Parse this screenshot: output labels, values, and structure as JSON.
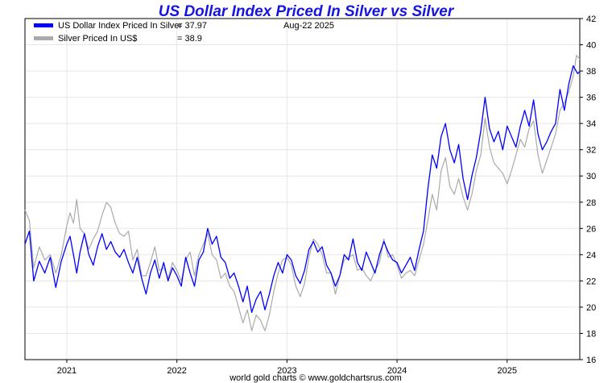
{
  "chart_data": {
    "type": "line",
    "title": "US Dollar Index Priced In Silver vs Silver",
    "date_label": "Aug-22  2025",
    "credit": "world gold charts © www.goldchartsrus.com",
    "grid": true,
    "legend_position": "top-left",
    "x_axis": {
      "ticks": [
        {
          "label": "2021",
          "x": 2021.0
        },
        {
          "label": "2022",
          "x": 2022.0
        },
        {
          "label": "2023",
          "x": 2023.0
        },
        {
          "label": "2024",
          "x": 2024.0
        },
        {
          "label": "2025",
          "x": 2025.0
        }
      ],
      "range": [
        2020.62,
        2025.66
      ]
    },
    "y_axis": {
      "ticks": [
        "16",
        "18",
        "20",
        "22",
        "24",
        "26",
        "28",
        "30",
        "32",
        "34",
        "36",
        "38",
        "40",
        "42"
      ],
      "range": [
        16,
        42
      ]
    },
    "series": [
      {
        "name": "US Dollar Index Priced In Silver",
        "value_label": "= 37.97",
        "color": "#0000ff",
        "points": [
          [
            2020.62,
            24.8
          ],
          [
            2020.66,
            25.8
          ],
          [
            2020.7,
            22.0
          ],
          [
            2020.75,
            23.5
          ],
          [
            2020.8,
            22.6
          ],
          [
            2020.85,
            23.8
          ],
          [
            2020.9,
            21.5
          ],
          [
            2020.95,
            23.5
          ],
          [
            2021.0,
            24.8
          ],
          [
            2021.03,
            25.4
          ],
          [
            2021.06,
            24.0
          ],
          [
            2021.09,
            22.6
          ],
          [
            2021.12,
            24.2
          ],
          [
            2021.16,
            25.6
          ],
          [
            2021.2,
            24.0
          ],
          [
            2021.24,
            23.2
          ],
          [
            2021.28,
            24.6
          ],
          [
            2021.32,
            25.6
          ],
          [
            2021.36,
            24.4
          ],
          [
            2021.4,
            25.0
          ],
          [
            2021.44,
            24.2
          ],
          [
            2021.48,
            23.8
          ],
          [
            2021.52,
            24.4
          ],
          [
            2021.56,
            23.4
          ],
          [
            2021.6,
            22.6
          ],
          [
            2021.64,
            23.8
          ],
          [
            2021.68,
            22.2
          ],
          [
            2021.72,
            21.0
          ],
          [
            2021.76,
            22.6
          ],
          [
            2021.8,
            23.6
          ],
          [
            2021.84,
            22.2
          ],
          [
            2021.88,
            23.4
          ],
          [
            2021.92,
            22.0
          ],
          [
            2021.96,
            23.0
          ],
          [
            2022.0,
            22.4
          ],
          [
            2022.04,
            21.6
          ],
          [
            2022.08,
            23.8
          ],
          [
            2022.12,
            22.6
          ],
          [
            2022.16,
            21.6
          ],
          [
            2022.2,
            23.6
          ],
          [
            2022.24,
            24.2
          ],
          [
            2022.28,
            26.0
          ],
          [
            2022.32,
            24.8
          ],
          [
            2022.36,
            25.4
          ],
          [
            2022.4,
            23.8
          ],
          [
            2022.44,
            23.4
          ],
          [
            2022.48,
            22.2
          ],
          [
            2022.52,
            22.6
          ],
          [
            2022.56,
            21.6
          ],
          [
            2022.6,
            20.4
          ],
          [
            2022.64,
            21.6
          ],
          [
            2022.68,
            19.6
          ],
          [
            2022.72,
            20.6
          ],
          [
            2022.76,
            21.2
          ],
          [
            2022.8,
            19.8
          ],
          [
            2022.84,
            21.0
          ],
          [
            2022.88,
            22.4
          ],
          [
            2022.92,
            23.4
          ],
          [
            2022.96,
            22.6
          ],
          [
            2023.0,
            24.0
          ],
          [
            2023.04,
            23.6
          ],
          [
            2023.08,
            22.4
          ],
          [
            2023.12,
            21.8
          ],
          [
            2023.16,
            22.8
          ],
          [
            2023.2,
            24.4
          ],
          [
            2023.24,
            25.0
          ],
          [
            2023.28,
            24.2
          ],
          [
            2023.32,
            24.6
          ],
          [
            2023.36,
            23.2
          ],
          [
            2023.4,
            22.6
          ],
          [
            2023.44,
            21.6
          ],
          [
            2023.48,
            22.4
          ],
          [
            2023.52,
            24.0
          ],
          [
            2023.56,
            23.6
          ],
          [
            2023.6,
            25.2
          ],
          [
            2023.64,
            23.4
          ],
          [
            2023.68,
            22.8
          ],
          [
            2023.72,
            24.2
          ],
          [
            2023.76,
            23.4
          ],
          [
            2023.8,
            22.6
          ],
          [
            2023.84,
            24.0
          ],
          [
            2023.88,
            25.0
          ],
          [
            2023.92,
            24.2
          ],
          [
            2023.96,
            23.6
          ],
          [
            2024.0,
            23.4
          ],
          [
            2024.04,
            22.6
          ],
          [
            2024.08,
            23.2
          ],
          [
            2024.12,
            23.8
          ],
          [
            2024.16,
            22.8
          ],
          [
            2024.2,
            24.4
          ],
          [
            2024.24,
            25.8
          ],
          [
            2024.28,
            29.0
          ],
          [
            2024.32,
            31.6
          ],
          [
            2024.36,
            30.6
          ],
          [
            2024.4,
            33.0
          ],
          [
            2024.44,
            34.0
          ],
          [
            2024.48,
            32.0
          ],
          [
            2024.52,
            31.0
          ],
          [
            2024.56,
            32.4
          ],
          [
            2024.6,
            29.8
          ],
          [
            2024.64,
            28.2
          ],
          [
            2024.68,
            30.0
          ],
          [
            2024.72,
            31.4
          ],
          [
            2024.76,
            33.4
          ],
          [
            2024.8,
            36.0
          ],
          [
            2024.84,
            33.6
          ],
          [
            2024.88,
            32.6
          ],
          [
            2024.92,
            33.4
          ],
          [
            2024.96,
            32.0
          ],
          [
            2025.0,
            33.8
          ],
          [
            2025.04,
            33.0
          ],
          [
            2025.08,
            32.2
          ],
          [
            2025.12,
            33.8
          ],
          [
            2025.16,
            35.0
          ],
          [
            2025.2,
            33.8
          ],
          [
            2025.24,
            35.8
          ],
          [
            2025.28,
            33.2
          ],
          [
            2025.32,
            32.0
          ],
          [
            2025.36,
            32.6
          ],
          [
            2025.4,
            33.4
          ],
          [
            2025.44,
            34.0
          ],
          [
            2025.48,
            36.6
          ],
          [
            2025.52,
            35.0
          ],
          [
            2025.56,
            37.0
          ],
          [
            2025.6,
            38.4
          ],
          [
            2025.64,
            37.8
          ],
          [
            2025.66,
            37.97
          ]
        ]
      },
      {
        "name": "Silver Priced In US$",
        "value_label": "= 38.9",
        "color": "#aaaaaa",
        "points": [
          [
            2020.62,
            27.4
          ],
          [
            2020.66,
            26.6
          ],
          [
            2020.7,
            23.0
          ],
          [
            2020.75,
            24.6
          ],
          [
            2020.8,
            23.6
          ],
          [
            2020.85,
            24.0
          ],
          [
            2020.9,
            22.6
          ],
          [
            2020.95,
            24.0
          ],
          [
            2021.0,
            26.2
          ],
          [
            2021.03,
            27.2
          ],
          [
            2021.06,
            26.4
          ],
          [
            2021.09,
            28.2
          ],
          [
            2021.12,
            26.0
          ],
          [
            2021.16,
            25.6
          ],
          [
            2021.2,
            24.4
          ],
          [
            2021.24,
            25.2
          ],
          [
            2021.28,
            25.8
          ],
          [
            2021.32,
            27.0
          ],
          [
            2021.36,
            28.0
          ],
          [
            2021.4,
            27.6
          ],
          [
            2021.44,
            26.4
          ],
          [
            2021.48,
            25.6
          ],
          [
            2021.52,
            25.4
          ],
          [
            2021.56,
            25.8
          ],
          [
            2021.6,
            23.6
          ],
          [
            2021.64,
            24.4
          ],
          [
            2021.68,
            22.4
          ],
          [
            2021.72,
            22.4
          ],
          [
            2021.76,
            23.4
          ],
          [
            2021.8,
            24.6
          ],
          [
            2021.84,
            22.8
          ],
          [
            2021.88,
            23.0
          ],
          [
            2021.92,
            22.2
          ],
          [
            2021.96,
            23.4
          ],
          [
            2022.0,
            22.8
          ],
          [
            2022.04,
            22.0
          ],
          [
            2022.08,
            23.6
          ],
          [
            2022.12,
            24.2
          ],
          [
            2022.16,
            22.4
          ],
          [
            2022.2,
            24.0
          ],
          [
            2022.24,
            24.8
          ],
          [
            2022.28,
            25.6
          ],
          [
            2022.32,
            24.0
          ],
          [
            2022.36,
            23.6
          ],
          [
            2022.4,
            22.2
          ],
          [
            2022.44,
            22.6
          ],
          [
            2022.48,
            21.6
          ],
          [
            2022.52,
            21.2
          ],
          [
            2022.56,
            20.0
          ],
          [
            2022.6,
            18.8
          ],
          [
            2022.64,
            19.8
          ],
          [
            2022.68,
            18.2
          ],
          [
            2022.72,
            19.4
          ],
          [
            2022.76,
            19.0
          ],
          [
            2022.8,
            18.2
          ],
          [
            2022.84,
            19.4
          ],
          [
            2022.88,
            21.2
          ],
          [
            2022.92,
            22.6
          ],
          [
            2022.96,
            23.6
          ],
          [
            2023.0,
            23.8
          ],
          [
            2023.04,
            23.2
          ],
          [
            2023.08,
            21.6
          ],
          [
            2023.12,
            20.8
          ],
          [
            2023.16,
            21.8
          ],
          [
            2023.2,
            23.8
          ],
          [
            2023.24,
            25.2
          ],
          [
            2023.28,
            24.8
          ],
          [
            2023.32,
            24.0
          ],
          [
            2023.36,
            22.6
          ],
          [
            2023.4,
            22.6
          ],
          [
            2023.44,
            21.0
          ],
          [
            2023.48,
            22.4
          ],
          [
            2023.52,
            23.6
          ],
          [
            2023.56,
            23.8
          ],
          [
            2023.6,
            24.0
          ],
          [
            2023.64,
            22.8
          ],
          [
            2023.68,
            23.0
          ],
          [
            2023.72,
            22.4
          ],
          [
            2023.76,
            22.0
          ],
          [
            2023.8,
            22.8
          ],
          [
            2023.84,
            23.4
          ],
          [
            2023.88,
            25.2
          ],
          [
            2023.92,
            23.8
          ],
          [
            2023.96,
            24.0
          ],
          [
            2024.0,
            23.2
          ],
          [
            2024.04,
            22.2
          ],
          [
            2024.08,
            22.6
          ],
          [
            2024.12,
            22.8
          ],
          [
            2024.16,
            22.4
          ],
          [
            2024.2,
            23.6
          ],
          [
            2024.24,
            24.8
          ],
          [
            2024.28,
            26.6
          ],
          [
            2024.32,
            28.6
          ],
          [
            2024.36,
            27.4
          ],
          [
            2024.4,
            30.4
          ],
          [
            2024.44,
            31.4
          ],
          [
            2024.48,
            29.2
          ],
          [
            2024.52,
            28.6
          ],
          [
            2024.56,
            29.8
          ],
          [
            2024.6,
            28.4
          ],
          [
            2024.64,
            27.4
          ],
          [
            2024.68,
            28.6
          ],
          [
            2024.72,
            30.4
          ],
          [
            2024.76,
            31.6
          ],
          [
            2024.8,
            34.4
          ],
          [
            2024.84,
            32.2
          ],
          [
            2024.88,
            31.0
          ],
          [
            2024.92,
            30.6
          ],
          [
            2024.96,
            30.2
          ],
          [
            2025.0,
            29.4
          ],
          [
            2025.04,
            30.4
          ],
          [
            2025.08,
            31.6
          ],
          [
            2025.12,
            32.8
          ],
          [
            2025.16,
            32.2
          ],
          [
            2025.2,
            33.6
          ],
          [
            2025.24,
            34.2
          ],
          [
            2025.28,
            31.6
          ],
          [
            2025.32,
            30.2
          ],
          [
            2025.36,
            31.2
          ],
          [
            2025.4,
            32.2
          ],
          [
            2025.44,
            33.2
          ],
          [
            2025.48,
            35.0
          ],
          [
            2025.52,
            35.6
          ],
          [
            2025.56,
            36.4
          ],
          [
            2025.6,
            37.6
          ],
          [
            2025.63,
            39.2
          ],
          [
            2025.66,
            38.9
          ]
        ]
      }
    ]
  }
}
